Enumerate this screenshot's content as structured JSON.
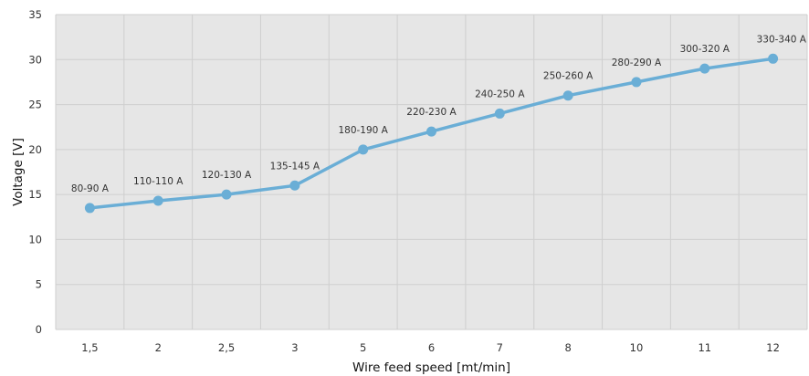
{
  "chart_data": {
    "type": "line",
    "xlabel": "Wire feed speed [mt/min]",
    "ylabel": "Voltage [V]",
    "ylim": [
      0,
      35
    ],
    "yticks": [
      "0",
      "5",
      "10",
      "15",
      "20",
      "25",
      "30",
      "35"
    ],
    "grid": true,
    "categories": [
      "1,5",
      "2",
      "2,5",
      "3",
      "5",
      "6",
      "7",
      "8",
      "10",
      "11",
      "12"
    ],
    "series": [
      {
        "values": [
          13.5,
          14.3,
          15.0,
          16.0,
          20.0,
          22.0,
          24.0,
          26.0,
          27.5,
          29.0,
          30.1
        ],
        "labels": [
          "80-90 A",
          "110-110 A",
          "120-130 A",
          "135-145 A",
          "180-190 A",
          "220-230 A",
          "240-250 A",
          "250-260 A",
          "280-290 A",
          "300-320 A",
          "330-340 A"
        ]
      }
    ],
    "colors": {
      "line": "#6aaed6",
      "plot_background": "#e6e6e6",
      "grid": "#cfcfcf"
    }
  }
}
